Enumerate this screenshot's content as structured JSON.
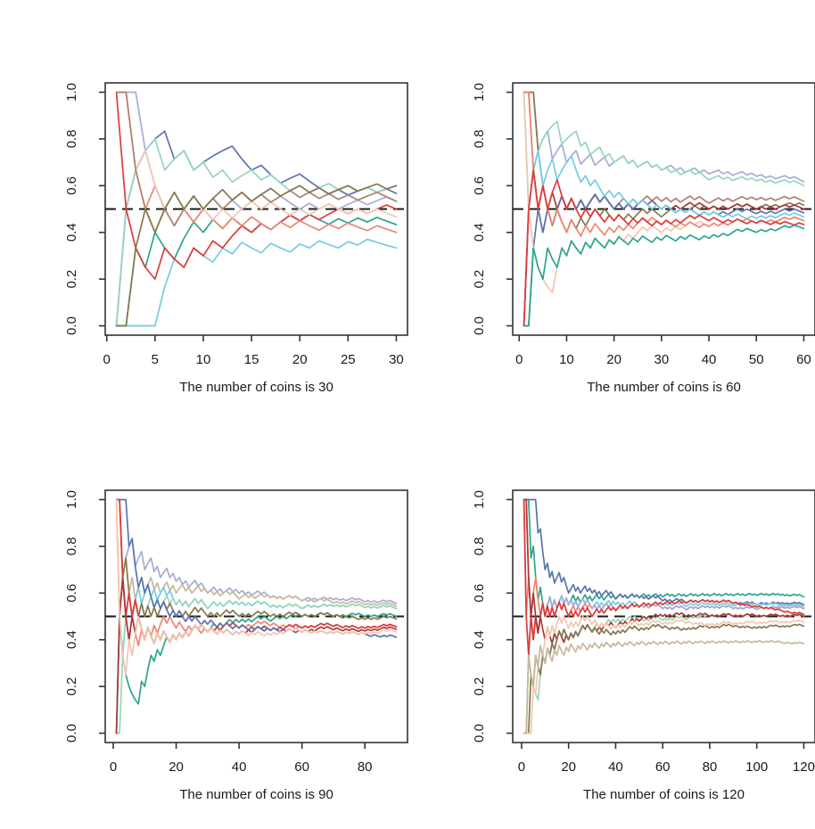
{
  "page": {
    "background": "#ffffff"
  },
  "chart_data": [
    {
      "type": "line",
      "xlabel": "The number of coins is 30",
      "n": 30,
      "x_ticks": [
        0,
        5,
        10,
        15,
        20,
        25,
        30
      ],
      "y_ticks": [
        "0.0",
        "0.2",
        "0.4",
        "0.6",
        "0.8",
        "1.0"
      ],
      "ylim": [
        0,
        1
      ],
      "reference_y": 0.5,
      "reference_style": "dashed-black",
      "grid": false,
      "legend": false,
      "series_encoding": "flips is the heads(1)/tails(0) sequence; plotted value at toss k is the cumulative proportion of heads",
      "series": [
        {
          "color": "#5B73AE",
          "flips": "011111010111100100110001011010"
        },
        {
          "color": "#A2ADD6",
          "flips": "111000100110101101001010110110"
        },
        {
          "color": "#73CBE4",
          "flips": "000001101001010010010100101000"
        },
        {
          "color": "#95D6BC",
          "flips": "011110110101011010010110101011"
        },
        {
          "color": "#2BA58C",
          "flips": "001010011010100101101001010100"
        },
        {
          "color": "#DF3A3A",
          "flips": "100001001010110101101011010110"
        },
        {
          "color": "#EF8571",
          "flips": "110010010100101001010010100100"
        },
        {
          "color": "#F2C6AF",
          "flips": "110100101001011010010110010100"
        },
        {
          "color": "#AB8273",
          "flips": "110001011010110101101010101100"
        },
        {
          "color": "#85784F",
          "flips": "001101101011010110110101101101"
        }
      ]
    },
    {
      "type": "line",
      "xlabel": "The number of coins is 60",
      "n": 60,
      "x_ticks": [
        0,
        10,
        20,
        30,
        40,
        50,
        60
      ],
      "y_ticks": [
        "0.0",
        "0.2",
        "0.4",
        "0.6",
        "0.8",
        "1.0"
      ],
      "ylim": [
        0,
        1
      ],
      "reference_y": 0.5,
      "reference_style": "dashed-black",
      "grid": false,
      "legend": false,
      "series_encoding": "flips is the heads(1)/tails(0) sequence; plotted value at toss k is the cumulative proportion of heads",
      "series": [
        {
          "color": "#A2ADD6",
          "flips": "111011011011011011011101011010110101101011010110101010110100"
        },
        {
          "color": "#95D6BC",
          "flips": "011111110111010110101101011010101011010011010110101010110100"
        },
        {
          "color": "#AB8273",
          "flips": "110001011010101101001101011010101011010011010110101010110100"
        },
        {
          "color": "#85784F",
          "flips": "111000010010101101001010110100110101101010101101001101011010"
        },
        {
          "color": "#A93938",
          "flips": "011010101010101101001010110100101011010010101101001010110100"
        },
        {
          "color": "#5B73AE",
          "flips": "001101011010101101001010110100100101001010101101001010110100"
        },
        {
          "color": "#73CBE4",
          "flips": "101101101110010100101001010010100101001010010100101010110100"
        },
        {
          "color": "#F2C6AF",
          "flips": "100000011010010100101010110100101011010010101101001010110100"
        },
        {
          "color": "#EF8571",
          "flips": "110010010010010100101010110100100101001010101101001010110100"
        },
        {
          "color": "#DF3A3A",
          "flips": "011010110010010100101001010010101011010010010100101001010010"
        },
        {
          "color": "#2BA58C",
          "flips": "001001001010010100101001010010100101001010101101001010110100"
        }
      ]
    },
    {
      "type": "line",
      "xlabel": "The number of coins is 90",
      "n": 90,
      "x_ticks": [
        0,
        20,
        40,
        60,
        80
      ],
      "y_ticks": [
        "0.0",
        "0.2",
        "0.4",
        "0.6",
        "0.8",
        "1.0"
      ],
      "ylim": [
        0,
        1
      ],
      "reference_y": 0.5,
      "reference_style": "dashed-black",
      "grid": false,
      "legend": false,
      "series_encoding": "flips is the heads(1)/tails(0) sequence; plotted value at toss k is the cumulative proportion of heads",
      "series": [
        {
          "color": "#A2ADD6",
          "flips": "011111011011010110101010110100110101101010101101001010110100110101101010101101001010110100"
        },
        {
          "color": "#C7B79B",
          "flips": "110011011011010110101101011010101011010011010110101010110100101011010010101101001010110100"
        },
        {
          "color": "#73CBE4",
          "flips": "010110110110101101001010110100110101101010101101001010110100110101101010101101001010110100"
        },
        {
          "color": "#95D6BC",
          "flips": "001101101011010110101010110100110101101010101101001010110100110101101010101101001010110100"
        },
        {
          "color": "#2BA58C",
          "flips": "010000001011010110101010110100110101101010101101001101011010101011010010101101001010110100"
        },
        {
          "color": "#85784F",
          "flips": "110100101010101101001010110100101011010010101101001010110100101011010010010100101010110100"
        },
        {
          "color": "#EF8571",
          "flips": "101001001010101101001001010010101011010010101101001001010010101011010010010100101010110100"
        },
        {
          "color": "#DF3A3A",
          "flips": "110010100010010100101010110100101011010010010100101010110100101011010010010100101010110100"
        },
        {
          "color": "#A93938",
          "flips": "011001010010010100101010110100100101001010101101001001010010101011010010010100101010110100"
        },
        {
          "color": "#5B73AE",
          "flips": "111101001010010100101001010010100101001010010100101001010010100101001010010100100010010100"
        },
        {
          "color": "#F2C6AF",
          "flips": "100010110010010100101010110100100101001010010100101010110100100101001010010100101010110100"
        }
      ]
    },
    {
      "type": "line",
      "xlabel": "The number of coins is 120",
      "n": 120,
      "x_ticks": [
        0,
        20,
        40,
        60,
        80,
        100,
        120
      ],
      "y_ticks": [
        "0.0",
        "0.2",
        "0.4",
        "0.6",
        "0.8",
        "1.0"
      ],
      "ylim": [
        0,
        1
      ],
      "reference_y": 0.5,
      "reference_style": "dashed-black",
      "grid": false,
      "legend": false,
      "series_encoding": "flips is the heads(1)/tails(0) sequence; plotted value at toss k is the cumulative proportion of heads",
      "series": [
        {
          "color": "#2BA58C",
          "flips": "111010010011010110101101011010110101101011010110101101011010110101101011010110101101011010110101101011010110101010110100"
        },
        {
          "color": "#5B73AE",
          "flips": "111111010010101101001101011010101011010011010110101010110100101011010011010110101010110100101011010011010110101010110100"
        },
        {
          "color": "#73CBE4",
          "flips": "001101011011010110101010110100110101101010101101001101011010101011010011010110101010110100110101101010101101001010110100"
        },
        {
          "color": "#EF8571",
          "flips": "101011001010101101001101011010101011010011010110101010110100101011010011010110101010110100101011010011010110101010110100"
        },
        {
          "color": "#A2ADD6",
          "flips": "110001011011010110101010110100101011010011010110101010110100101011010011010110101010110100101011010011010110101010110100"
        },
        {
          "color": "#DF3A3A",
          "flips": "100101011010101101001010110100110101101011010110101101011010110101101011010110101010110100100101001010010100100010010100"
        },
        {
          "color": "#95D6BC",
          "flips": "001000011010101101001010110100110101101010101101001010110100101011010011010110101010110100101011010010101101001010110100"
        },
        {
          "color": "#A93938",
          "flips": "110010010010010100101010110100101011010011010110101101011010101011010010101101001010110100101011010010101101001010110100"
        },
        {
          "color": "#85784F",
          "flips": "000101001010101101001010110100100101001010101101001010110100100101001010101101001010110100100101001010101101001010110100"
        },
        {
          "color": "#F2C6AF",
          "flips": "000010110110101101001010110100100101001010101101001010110100101011010010010100101010110100101011010010101101001010110100"
        },
        {
          "color": "#C7B79B",
          "flips": "001001010010010100101001010010100101001010010100101001010010100101001010010100101001010010100101001010010100100010010100"
        }
      ]
    }
  ],
  "style": {
    "axis_color": "#333333",
    "text_color": "#1a1a1a",
    "reference_color": "#1c1c1c",
    "background": "#ffffff"
  }
}
